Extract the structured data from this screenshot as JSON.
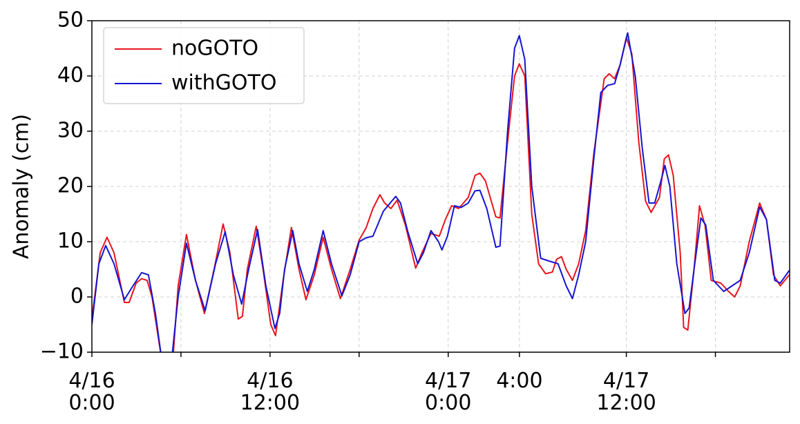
{
  "chart_data": {
    "type": "line",
    "ylabel": "Anomaly (cm)",
    "xlim": [
      0,
      47
    ],
    "ylim": [
      -10,
      50
    ],
    "xticks": [
      {
        "value": 0,
        "label": "4/16\n0:00"
      },
      {
        "value": 12,
        "label": "4/16\n12:00"
      },
      {
        "value": 24,
        "label": "4/17\n0:00"
      },
      {
        "value": 28.8,
        "label": "4:00"
      },
      {
        "value": 36,
        "label": "4/17\n12:00"
      }
    ],
    "xminorticks": [
      6,
      18,
      42
    ],
    "yticks": [
      {
        "value": -10,
        "label": "−10"
      },
      0,
      10,
      20,
      30,
      40,
      50
    ],
    "grid": true,
    "legend": "upper left",
    "series": [
      {
        "name": "noGOTO",
        "color": "#e8141c",
        "x": [
          0,
          0.56,
          1.02,
          1.49,
          2.19,
          2.51,
          2.98,
          3.35,
          3.72,
          4.05,
          4.74,
          5.44,
          5.81,
          6.37,
          6.98,
          7.58,
          8.23,
          8.84,
          9.3,
          9.86,
          10.14,
          10.47,
          11.07,
          11.53,
          12.05,
          12.37,
          12.88,
          13.44,
          13.95,
          14.42,
          14.98,
          15.58,
          16.14,
          16.74,
          17.4,
          18,
          18.47,
          18.93,
          19.4,
          19.72,
          20.14,
          20.56,
          21.12,
          21.81,
          22.23,
          22.84,
          23.4,
          23.81,
          24.23,
          24.7,
          25.35,
          25.81,
          26.14,
          26.51,
          27.21,
          27.49,
          28,
          28.47,
          28.79,
          29.16,
          29.63,
          30.09,
          30.56,
          31.02,
          31.3,
          31.63,
          31.95,
          32.37,
          32.79,
          33.26,
          33.81,
          34.51,
          34.84,
          35.21,
          35.58,
          36,
          36.37,
          36.84,
          37.3,
          37.67,
          38.23,
          38.56,
          38.84,
          39.16,
          39.63,
          39.86,
          40.14,
          40.56,
          40.93,
          41.3,
          41.72,
          42.37,
          42.88,
          43.3,
          43.67,
          44.28,
          44.98,
          45.44,
          45.91,
          46.37,
          46.98
        ],
        "values": [
          -4,
          8,
          10.8,
          8,
          -1,
          -1,
          2.5,
          3.3,
          3,
          0,
          -12,
          -12,
          2,
          11.3,
          3,
          -3,
          5,
          13.2,
          8,
          -4,
          -3.5,
          5,
          12.8,
          5,
          -5,
          -7,
          3,
          12.6,
          5,
          -0.5,
          4,
          10.8,
          5,
          -0.3,
          5,
          10.3,
          12.5,
          16,
          18.5,
          17,
          16,
          17.5,
          13,
          5.2,
          8,
          11.5,
          11,
          14,
          16.5,
          16,
          18,
          22,
          22.4,
          21,
          14.5,
          14.3,
          28,
          40,
          42.2,
          40,
          15,
          6,
          4.2,
          4.5,
          6.8,
          7.3,
          5,
          3,
          6,
          12,
          26,
          39.5,
          40.4,
          39.5,
          42,
          47,
          44,
          28,
          17.3,
          15.3,
          18,
          25,
          25.7,
          22,
          8,
          -5.5,
          -6,
          5,
          16.5,
          13,
          3,
          2.5,
          1,
          0,
          2,
          10,
          17,
          14,
          4,
          2,
          4
        ]
      },
      {
        "name": "withGOTO",
        "color": "#1414d2",
        "x": [
          0,
          0.47,
          0.93,
          1.49,
          2.19,
          2.65,
          3.35,
          3.81,
          4.28,
          4.74,
          5.35,
          5.81,
          6.37,
          6.98,
          7.63,
          8.33,
          8.98,
          9.53,
          10.09,
          10.56,
          11.16,
          11.72,
          12.33,
          12.65,
          12.98,
          13.53,
          13.95,
          14.51,
          14.98,
          15.58,
          16.14,
          16.84,
          17.4,
          18,
          18.47,
          18.93,
          19.63,
          20.09,
          20.47,
          20.79,
          21.26,
          21.95,
          22.33,
          22.84,
          23.35,
          23.58,
          23.95,
          24.42,
          24.88,
          25.35,
          25.81,
          26.14,
          26.6,
          27.21,
          27.49,
          28,
          28.47,
          28.79,
          29.16,
          29.63,
          30.23,
          30.79,
          31.4,
          31.95,
          32.37,
          32.79,
          33.26,
          33.81,
          34.28,
          34.74,
          35.21,
          35.58,
          36.09,
          36.6,
          37.07,
          37.53,
          37.91,
          38.33,
          38.6,
          38.93,
          39.4,
          39.95,
          40.23,
          40.56,
          41.02,
          41.35,
          41.86,
          42.56,
          43.12,
          43.67,
          44.28,
          44.98,
          45.44,
          46,
          46.37,
          46.98
        ],
        "values": [
          -5,
          6,
          9.3,
          6,
          -0.5,
          1.5,
          4.4,
          4,
          -3,
          -12,
          -12,
          0,
          9.7,
          3,
          -2.5,
          6,
          11.8,
          4,
          -1.3,
          5,
          12.2,
          2,
          -5.7,
          -3,
          5,
          12,
          6,
          1,
          5,
          12,
          6,
          0.2,
          4,
          10,
          10.7,
          11,
          15.5,
          17,
          18.2,
          17,
          12,
          6,
          8,
          12,
          10,
          8.5,
          11,
          16.5,
          16.2,
          17,
          19.2,
          19.3,
          16,
          9,
          9.2,
          30,
          45,
          47.3,
          43,
          20,
          7,
          6.5,
          6,
          2,
          -0.3,
          4,
          10,
          25,
          37,
          38.3,
          38.6,
          42,
          47.8,
          40,
          27,
          17,
          17,
          21,
          23.8,
          20,
          6,
          -3,
          -2,
          5,
          14.3,
          13,
          3,
          1,
          2,
          3,
          8,
          16.3,
          14,
          3,
          2.5,
          4.8
        ]
      }
    ]
  }
}
